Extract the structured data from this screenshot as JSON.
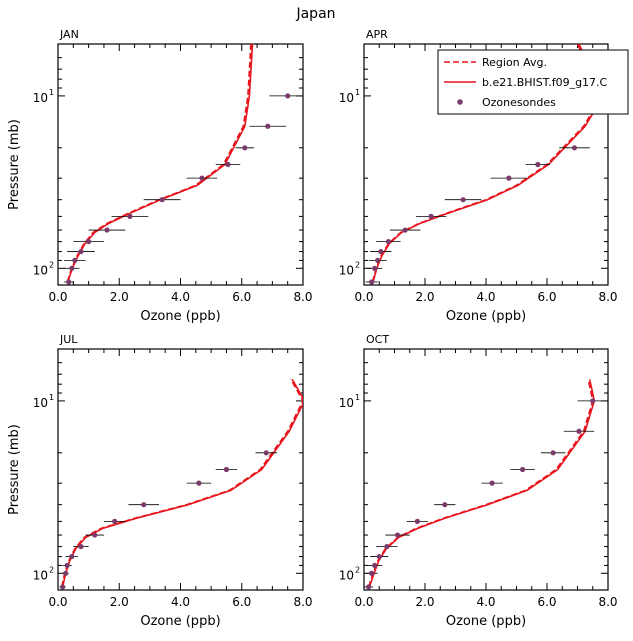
{
  "title": "Japan",
  "colors": {
    "model": "#e8141c",
    "sonde": "#7a3a6a",
    "axis": "#000000"
  },
  "chart_data": [
    {
      "type": "line",
      "panel": "JAN",
      "xlabel": "Ozone (ppb)",
      "ylabel": "Pressure (mb)",
      "xlim": [
        0,
        8
      ],
      "ylim": [
        125,
        5
      ],
      "yscale": "log",
      "xticks": [
        "0.0",
        "2.0",
        "4.0",
        "6.0",
        "8.0"
      ],
      "yticks": [
        {
          "value": 10,
          "label": "10",
          "sup": "1"
        },
        {
          "value": 100,
          "label": "10",
          "sup": "2"
        }
      ],
      "series": [
        {
          "name": "Region Avg.",
          "style": "dashed",
          "x": [
            0.3,
            0.45,
            0.62,
            0.85,
            1.15,
            1.6,
            2.3,
            3.3,
            4.5,
            5.4,
            6.05,
            6.2,
            6.3
          ],
          "y": [
            120,
            100,
            85,
            72,
            62,
            55,
            48,
            40,
            33,
            25,
            15,
            10,
            5
          ]
        },
        {
          "name": "b.e21.BHIST.f09_g17.C",
          "style": "solid",
          "x": [
            0.32,
            0.47,
            0.65,
            0.88,
            1.2,
            1.65,
            2.35,
            3.35,
            4.55,
            5.45,
            6.1,
            6.25,
            6.35
          ],
          "y": [
            120,
            100,
            85,
            72,
            62,
            55,
            48,
            40,
            33,
            25,
            15,
            10,
            5
          ]
        },
        {
          "name": "Ozonesondes",
          "style": "points",
          "x": [
            0.35,
            0.45,
            0.55,
            0.75,
            1.0,
            1.6,
            2.35,
            3.4,
            4.7,
            5.55,
            6.1,
            6.85,
            7.5
          ],
          "y": [
            120,
            100,
            90,
            80,
            70,
            60,
            50,
            40,
            30,
            25,
            20,
            15,
            10
          ],
          "xerr": [
            0.15,
            0.25,
            0.35,
            0.45,
            0.5,
            0.6,
            0.6,
            0.6,
            0.5,
            0.4,
            0.3,
            0.6,
            0.6
          ]
        }
      ]
    },
    {
      "type": "line",
      "panel": "APR",
      "xlabel": "Ozone (ppb)",
      "ylabel": "",
      "xlim": [
        0,
        8
      ],
      "ylim": [
        125,
        5
      ],
      "yscale": "log",
      "xticks": [
        "0.0",
        "2.0",
        "4.0",
        "6.0",
        "8.0"
      ],
      "yticks": [
        {
          "value": 10,
          "label": "10",
          "sup": "1"
        },
        {
          "value": 100,
          "label": "10",
          "sup": "2"
        }
      ],
      "series": [
        {
          "name": "Region Avg.",
          "style": "dashed",
          "x": [
            0.28,
            0.4,
            0.55,
            0.8,
            1.2,
            1.8,
            2.7,
            4.0,
            5.0,
            6.0,
            7.2,
            7.8,
            7.0
          ],
          "y": [
            120,
            100,
            85,
            72,
            62,
            55,
            48,
            40,
            33,
            25,
            15,
            10,
            5
          ]
        },
        {
          "name": "b.e21.BHIST.f09_g17.C",
          "style": "solid",
          "x": [
            0.3,
            0.42,
            0.58,
            0.83,
            1.23,
            1.83,
            2.75,
            4.05,
            5.05,
            6.05,
            7.25,
            7.85,
            7.05
          ],
          "y": [
            120,
            100,
            85,
            72,
            62,
            55,
            48,
            40,
            33,
            25,
            15,
            10,
            5
          ]
        },
        {
          "name": "Ozonesondes",
          "style": "points",
          "x": [
            0.25,
            0.35,
            0.45,
            0.55,
            0.8,
            1.35,
            2.2,
            3.25,
            4.75,
            5.7,
            6.9
          ],
          "y": [
            120,
            100,
            90,
            80,
            70,
            60,
            50,
            40,
            30,
            25,
            20
          ],
          "xerr": [
            0.2,
            0.25,
            0.3,
            0.35,
            0.4,
            0.5,
            0.5,
            0.6,
            0.6,
            0.4,
            0.5
          ]
        }
      ]
    },
    {
      "type": "line",
      "panel": "JUL",
      "xlabel": "Ozone (ppb)",
      "ylabel": "Pressure (mb)",
      "xlim": [
        0,
        8
      ],
      "ylim": [
        125,
        5
      ],
      "yscale": "log",
      "xticks": [
        "0.0",
        "2.0",
        "4.0",
        "6.0",
        "8.0"
      ],
      "yticks": [
        {
          "value": 10,
          "label": "10",
          "sup": "1"
        },
        {
          "value": 100,
          "label": "10",
          "sup": "2"
        }
      ],
      "series": [
        {
          "name": "Region Avg.",
          "style": "dashed",
          "x": [
            0.12,
            0.22,
            0.35,
            0.55,
            0.85,
            1.4,
            2.5,
            4.2,
            5.6,
            6.6,
            7.5,
            8.0,
            7.6
          ],
          "y": [
            120,
            100,
            85,
            72,
            62,
            55,
            48,
            40,
            33,
            25,
            15,
            10,
            7.5
          ]
        },
        {
          "name": "b.e21.BHIST.f09_g17.C",
          "style": "solid",
          "x": [
            0.15,
            0.25,
            0.38,
            0.58,
            0.9,
            1.45,
            2.55,
            4.25,
            5.65,
            6.65,
            7.55,
            8.05,
            7.65
          ],
          "y": [
            120,
            100,
            85,
            72,
            62,
            55,
            48,
            40,
            33,
            25,
            15,
            10,
            7.5
          ]
        },
        {
          "name": "Ozonesondes",
          "style": "points",
          "x": [
            0.15,
            0.25,
            0.3,
            0.45,
            0.75,
            1.2,
            1.85,
            2.8,
            4.6,
            5.5,
            6.8
          ],
          "y": [
            120,
            100,
            90,
            80,
            70,
            60,
            50,
            40,
            30,
            25,
            20
          ],
          "xerr": [
            0.1,
            0.1,
            0.15,
            0.2,
            0.25,
            0.3,
            0.35,
            0.5,
            0.4,
            0.35,
            0.35
          ]
        }
      ]
    },
    {
      "type": "line",
      "panel": "OCT",
      "xlabel": "Ozone (ppb)",
      "ylabel": "",
      "xlim": [
        0,
        8
      ],
      "ylim": [
        125,
        5
      ],
      "yscale": "log",
      "xticks": [
        "0.0",
        "2.0",
        "4.0",
        "6.0",
        "8.0"
      ],
      "yticks": [
        {
          "value": 10,
          "label": "10",
          "sup": "1"
        },
        {
          "value": 100,
          "label": "10",
          "sup": "2"
        }
      ],
      "series": [
        {
          "name": "Region Avg.",
          "style": "dashed",
          "x": [
            0.15,
            0.3,
            0.45,
            0.7,
            1.1,
            1.7,
            2.6,
            4.0,
            5.3,
            6.3,
            7.2,
            7.5,
            7.35
          ],
          "y": [
            120,
            100,
            85,
            72,
            62,
            55,
            48,
            40,
            33,
            25,
            15,
            10,
            7.5
          ]
        },
        {
          "name": "b.e21.BHIST.f09_g17.C",
          "style": "solid",
          "x": [
            0.18,
            0.33,
            0.48,
            0.73,
            1.13,
            1.75,
            2.65,
            4.05,
            5.35,
            6.35,
            7.25,
            7.55,
            7.4
          ],
          "y": [
            120,
            100,
            85,
            72,
            62,
            55,
            48,
            40,
            33,
            25,
            15,
            10,
            7.5
          ]
        },
        {
          "name": "Ozonesondes",
          "style": "points",
          "x": [
            0.15,
            0.25,
            0.35,
            0.5,
            0.75,
            1.1,
            1.75,
            2.65,
            4.2,
            5.2,
            6.2,
            7.05,
            7.5
          ],
          "y": [
            120,
            100,
            90,
            80,
            70,
            60,
            50,
            40,
            30,
            25,
            20,
            15,
            10
          ],
          "xerr": [
            0.15,
            0.2,
            0.25,
            0.3,
            0.35,
            0.4,
            0.35,
            0.35,
            0.35,
            0.4,
            0.4,
            0.5,
            0.5
          ]
        }
      ]
    }
  ],
  "legend": {
    "entries": [
      {
        "label": "Region Avg.",
        "style": "dashed"
      },
      {
        "label": "b.e21.BHIST.f09_g17.C",
        "style": "solid"
      },
      {
        "label": "Ozonesondes",
        "style": "points"
      }
    ]
  }
}
